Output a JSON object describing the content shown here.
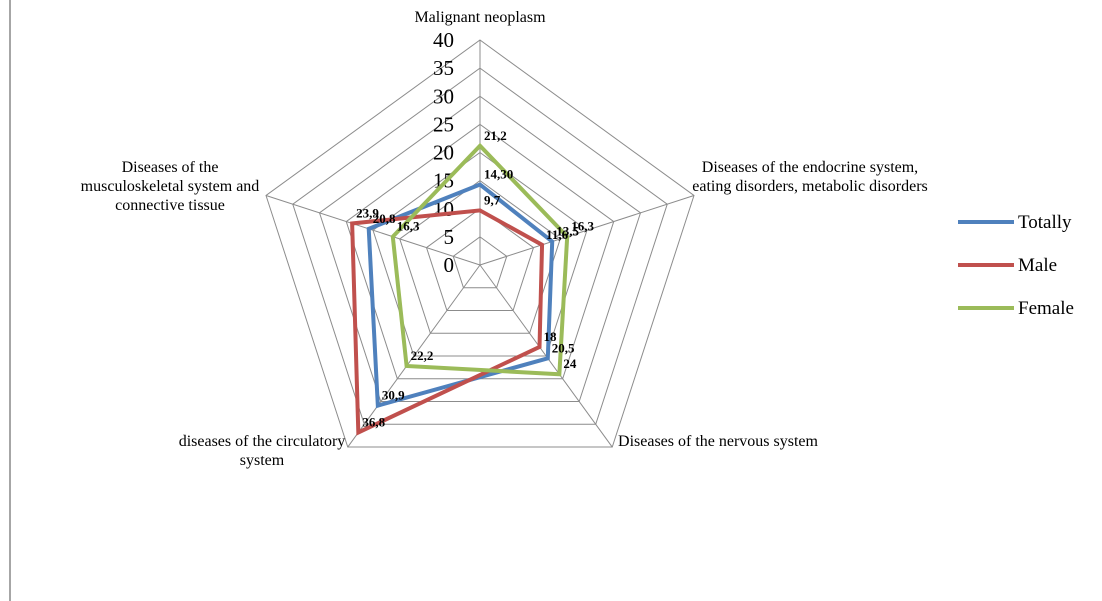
{
  "chart_data": {
    "type": "radar",
    "categories": [
      "Malignant neoplasm",
      "Diseases of the endocrine system, eating disorders, metabolic disorders",
      "Diseases of the nervous system",
      "diseases of the circulatory system",
      "Diseases of the musculoskeletal system and connective tissue"
    ],
    "series": [
      {
        "name": "Totally",
        "color": "#4f81bd",
        "values": [
          14.3,
          13.5,
          20.5,
          30.9,
          20.8
        ],
        "value_labels": [
          "14,30",
          "13,5",
          "20,5",
          "30,9",
          "20,8"
        ]
      },
      {
        "name": "Male",
        "color": "#c0504d",
        "values": [
          9.7,
          11.6,
          18,
          36.8,
          23.9
        ],
        "value_labels": [
          "9,7",
          "11,6",
          "18",
          "36,8",
          "23,9"
        ]
      },
      {
        "name": "Female",
        "color": "#9bbb59",
        "values": [
          21.2,
          16.3,
          24,
          22.2,
          16.3
        ],
        "value_labels": [
          "21,2",
          "16,3",
          "24",
          "22,2",
          "16,3"
        ]
      }
    ],
    "ylim": [
      0,
      40
    ],
    "yticks": [
      0,
      5,
      10,
      15,
      20,
      25,
      30,
      35,
      40
    ],
    "grid": true,
    "legend": "right"
  }
}
